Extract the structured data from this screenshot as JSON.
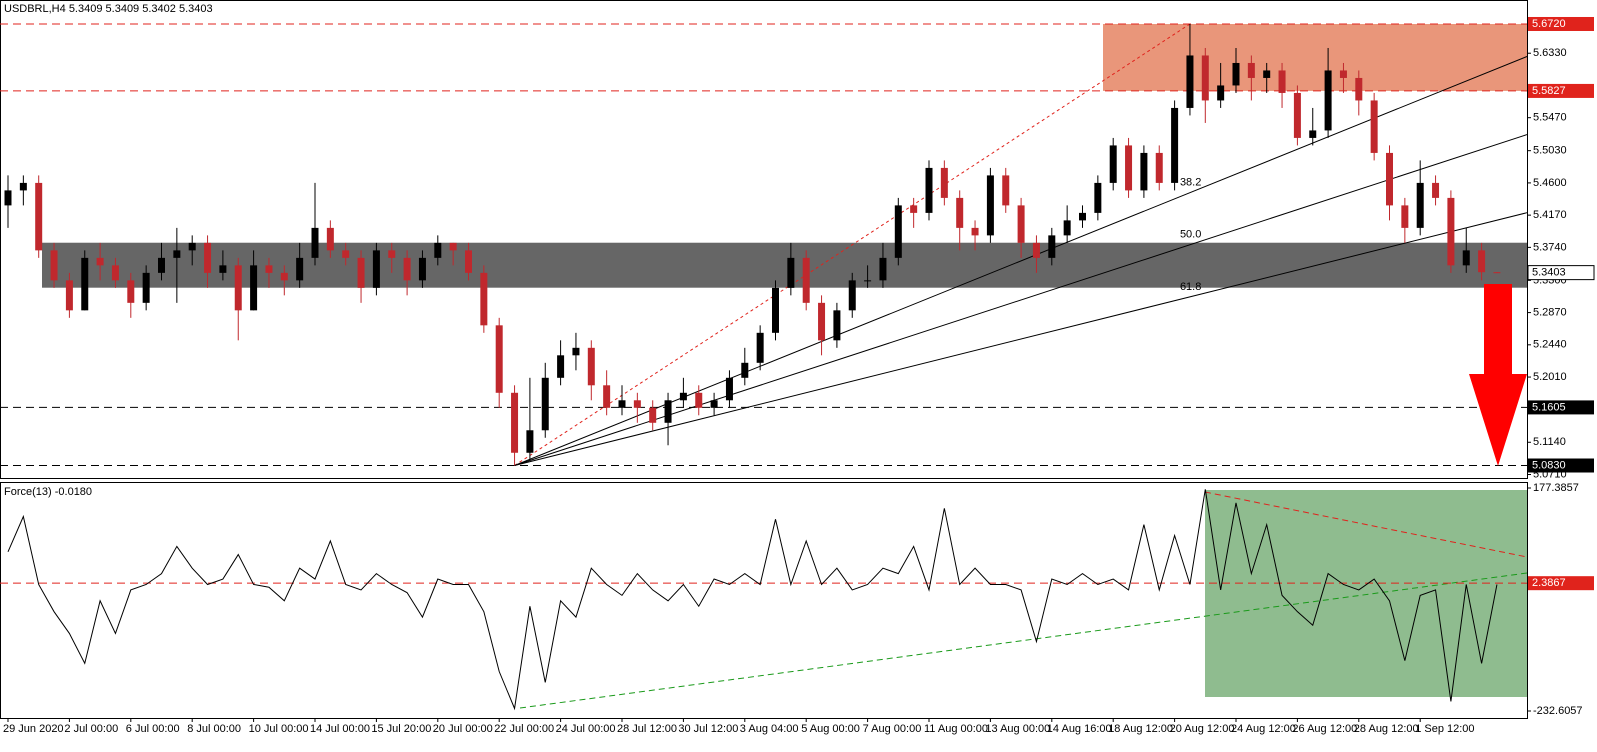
{
  "chart_data": [
    {
      "type": "candlestick",
      "title": "USDBRL,H4",
      "categories": [
        "29 Jun 2020",
        null,
        null,
        null,
        "2 Jul 00:00",
        null,
        null,
        null,
        "6 Jul 00:00",
        null,
        null,
        null,
        "8 Jul 00:00",
        null,
        null,
        null,
        "10 Jul 00:00",
        null,
        null,
        null,
        "14 Jul 00:00",
        null,
        null,
        null,
        "15 Jul 20:00",
        null,
        null,
        null,
        "20 Jul 00:00",
        null,
        null,
        null,
        "22 Jul 00:00",
        null,
        null,
        null,
        "24 Jul 00:00",
        null,
        null,
        null,
        "28 Jul 12:00",
        null,
        null,
        null,
        "30 Jul 12:00",
        null,
        null,
        null,
        "3 Aug 04:00",
        null,
        null,
        null,
        "5 Aug 00:00",
        null,
        null,
        null,
        "7 Aug 00:00",
        null,
        null,
        null,
        "11 Aug 00:00",
        null,
        null,
        null,
        "13 Aug 00:00",
        null,
        null,
        null,
        "14 Aug 16:00",
        null,
        null,
        null,
        "18 Aug 12:00",
        null,
        null,
        null,
        "20 Aug 12:00",
        null,
        null,
        null,
        "24 Aug 12:00",
        null,
        null,
        null,
        "26 Aug 12:00",
        null,
        null,
        null,
        "28 Aug 12:00",
        null,
        null,
        null,
        "1 Sep 12:00",
        null,
        null,
        null,
        null,
        null
      ],
      "open": [
        5.43,
        5.45,
        5.46,
        5.37,
        5.33,
        5.29,
        5.36,
        5.35,
        5.33,
        5.3,
        5.34,
        5.36,
        5.37,
        5.38,
        5.34,
        5.35,
        5.29,
        5.35,
        5.34,
        5.33,
        5.36,
        5.4,
        5.37,
        5.36,
        5.32,
        5.37,
        5.36,
        5.33,
        5.36,
        5.38,
        5.37,
        5.34,
        5.27,
        5.18,
        5.1,
        5.13,
        5.2,
        5.23,
        5.24,
        5.19,
        5.16,
        5.17,
        5.16,
        5.14,
        5.17,
        5.18,
        5.16,
        5.17,
        5.2,
        5.22,
        5.26,
        5.32,
        5.36,
        5.3,
        5.25,
        5.29,
        5.33,
        5.33,
        5.36,
        5.43,
        5.42,
        5.48,
        5.44,
        5.4,
        5.39,
        5.47,
        5.43,
        5.38,
        5.36,
        5.39,
        5.41,
        5.42,
        5.46,
        5.51,
        5.45,
        5.5,
        5.46,
        5.56,
        5.63,
        5.57,
        5.59,
        5.62,
        5.6,
        5.61,
        5.58,
        5.52,
        5.53,
        5.61,
        5.6,
        5.57,
        5.5,
        5.43,
        5.4,
        5.46,
        5.44,
        5.35,
        5.37,
        5.3409
      ],
      "high": [
        5.47,
        5.47,
        5.47,
        5.38,
        5.34,
        5.37,
        5.38,
        5.36,
        5.34,
        5.35,
        5.38,
        5.4,
        5.39,
        5.39,
        5.37,
        5.36,
        5.37,
        5.36,
        5.35,
        5.38,
        5.46,
        5.41,
        5.38,
        5.37,
        5.38,
        5.38,
        5.37,
        5.37,
        5.39,
        5.38,
        5.38,
        5.35,
        5.28,
        5.19,
        5.2,
        5.22,
        5.25,
        5.26,
        5.25,
        5.21,
        5.19,
        5.18,
        5.17,
        5.18,
        5.2,
        5.19,
        5.18,
        5.21,
        5.24,
        5.27,
        5.33,
        5.38,
        5.37,
        5.31,
        5.3,
        5.34,
        5.35,
        5.38,
        5.44,
        5.44,
        5.49,
        5.49,
        5.45,
        5.41,
        5.48,
        5.48,
        5.44,
        5.39,
        5.4,
        5.43,
        5.43,
        5.47,
        5.52,
        5.52,
        5.51,
        5.51,
        5.57,
        5.672,
        5.64,
        5.62,
        5.64,
        5.63,
        5.62,
        5.62,
        5.59,
        5.56,
        5.64,
        5.62,
        5.61,
        5.58,
        5.51,
        5.44,
        5.49,
        5.47,
        5.45,
        5.4,
        5.38,
        5.3409
      ],
      "low": [
        5.4,
        5.43,
        5.36,
        5.32,
        5.28,
        5.29,
        5.33,
        5.32,
        5.28,
        5.29,
        5.33,
        5.3,
        5.35,
        5.32,
        5.33,
        5.25,
        5.29,
        5.32,
        5.31,
        5.32,
        5.35,
        5.36,
        5.35,
        5.3,
        5.31,
        5.34,
        5.31,
        5.32,
        5.35,
        5.35,
        5.33,
        5.26,
        5.16,
        5.083,
        5.09,
        5.12,
        5.19,
        5.21,
        5.17,
        5.15,
        5.15,
        5.14,
        5.13,
        5.11,
        5.16,
        5.15,
        5.15,
        5.16,
        5.19,
        5.21,
        5.25,
        5.31,
        5.29,
        5.23,
        5.24,
        5.28,
        5.32,
        5.32,
        5.35,
        5.4,
        5.41,
        5.43,
        5.37,
        5.37,
        5.38,
        5.42,
        5.36,
        5.34,
        5.35,
        5.38,
        5.4,
        5.41,
        5.45,
        5.44,
        5.44,
        5.45,
        5.45,
        5.55,
        5.54,
        5.56,
        5.58,
        5.57,
        5.58,
        5.56,
        5.51,
        5.51,
        5.52,
        5.58,
        5.55,
        5.49,
        5.41,
        5.38,
        5.39,
        5.43,
        5.34,
        5.34,
        5.33,
        5.3402
      ],
      "close": [
        5.45,
        5.46,
        5.37,
        5.33,
        5.29,
        5.36,
        5.35,
        5.33,
        5.3,
        5.34,
        5.36,
        5.37,
        5.38,
        5.34,
        5.35,
        5.29,
        5.35,
        5.34,
        5.33,
        5.36,
        5.4,
        5.37,
        5.36,
        5.32,
        5.37,
        5.36,
        5.33,
        5.36,
        5.38,
        5.37,
        5.34,
        5.27,
        5.18,
        5.1,
        5.13,
        5.2,
        5.23,
        5.24,
        5.19,
        5.16,
        5.17,
        5.16,
        5.14,
        5.17,
        5.18,
        5.16,
        5.17,
        5.2,
        5.22,
        5.26,
        5.32,
        5.36,
        5.3,
        5.25,
        5.29,
        5.33,
        5.33,
        5.36,
        5.43,
        5.42,
        5.48,
        5.44,
        5.4,
        5.39,
        5.47,
        5.43,
        5.38,
        5.36,
        5.39,
        5.41,
        5.42,
        5.46,
        5.51,
        5.45,
        5.5,
        5.46,
        5.56,
        5.63,
        5.57,
        5.59,
        5.62,
        5.6,
        5.61,
        5.58,
        5.52,
        5.53,
        5.61,
        5.6,
        5.57,
        5.5,
        5.43,
        5.4,
        5.46,
        5.44,
        5.35,
        5.37,
        5.3409,
        5.3403
      ],
      "up_color": "#000000",
      "down_color": "#c0282d",
      "ylim": [
        5.065,
        5.704
      ],
      "yticks": [
        {
          "value": 5.633,
          "label": "5.6330"
        },
        {
          "value": 5.547,
          "label": "5.5470"
        },
        {
          "value": 5.503,
          "label": "5.5030"
        },
        {
          "value": 5.46,
          "label": "5.4600"
        },
        {
          "value": 5.417,
          "label": "5.4170"
        },
        {
          "value": 5.374,
          "label": "5.3740"
        },
        {
          "value": 5.33,
          "label": "5.3300"
        },
        {
          "value": 5.287,
          "label": "5.2870"
        },
        {
          "value": 5.244,
          "label": "5.2440"
        },
        {
          "value": 5.201,
          "label": "5.2010"
        },
        {
          "value": 5.114,
          "label": "5.1140"
        },
        {
          "value": 5.071,
          "label": "5.0710"
        }
      ],
      "levels": [
        {
          "value": 5.672,
          "label": "5.6720",
          "color": "#e0231c"
        },
        {
          "value": 5.5827,
          "color": "#e0231c"
        },
        {
          "value": 5.1605,
          "color": "#000000"
        },
        {
          "value": 5.083,
          "label": "5.0830",
          "color": "#000000"
        }
      ],
      "zones": [
        {
          "from": 5.5827,
          "to": 5.672,
          "color": "#e9967a"
        },
        {
          "from": 5.3202,
          "to": 5.3802,
          "color": "#666666"
        }
      ],
      "fib_levels": [
        38.2,
        {
          "value": 50,
          "label": "50.0"
        },
        61.8
      ]
    },
    {
      "type": "line",
      "title": "Force(13) -0.0180",
      "color": "#000000",
      "values": [
        60,
        125,
        0,
        -50,
        -90,
        -145,
        -30,
        -90,
        -10,
        0,
        20,
        70,
        30,
        0,
        10,
        55,
        0,
        -5,
        -30,
        30,
        10,
        80,
        0,
        -10,
        20,
        0,
        -15,
        -60,
        10,
        0,
        0,
        -50,
        -160,
        -228,
        -40,
        -180,
        -30,
        -60,
        30,
        0,
        -20,
        20,
        -10,
        -30,
        0,
        -40,
        10,
        0,
        20,
        0,
        120,
        0,
        80,
        0,
        30,
        -10,
        0,
        30,
        20,
        70,
        -10,
        140,
        0,
        30,
        0,
        0,
        -10,
        -105,
        10,
        0,
        20,
        0,
        10,
        -10,
        110,
        -10,
        90,
        0,
        175,
        -10,
        150,
        20,
        110,
        -20,
        -50,
        -75,
        20,
        0,
        -10,
        10,
        -30,
        -140,
        -20,
        -10,
        -215,
        0,
        -145,
        -0.018
      ],
      "ylim": [
        -232.6057,
        177.3857
      ],
      "yticks": [
        177.3857,
        -232.6057
      ],
      "level": {
        "value": 2.3867,
        "color": "#e0231c"
      }
    }
  ]
}
